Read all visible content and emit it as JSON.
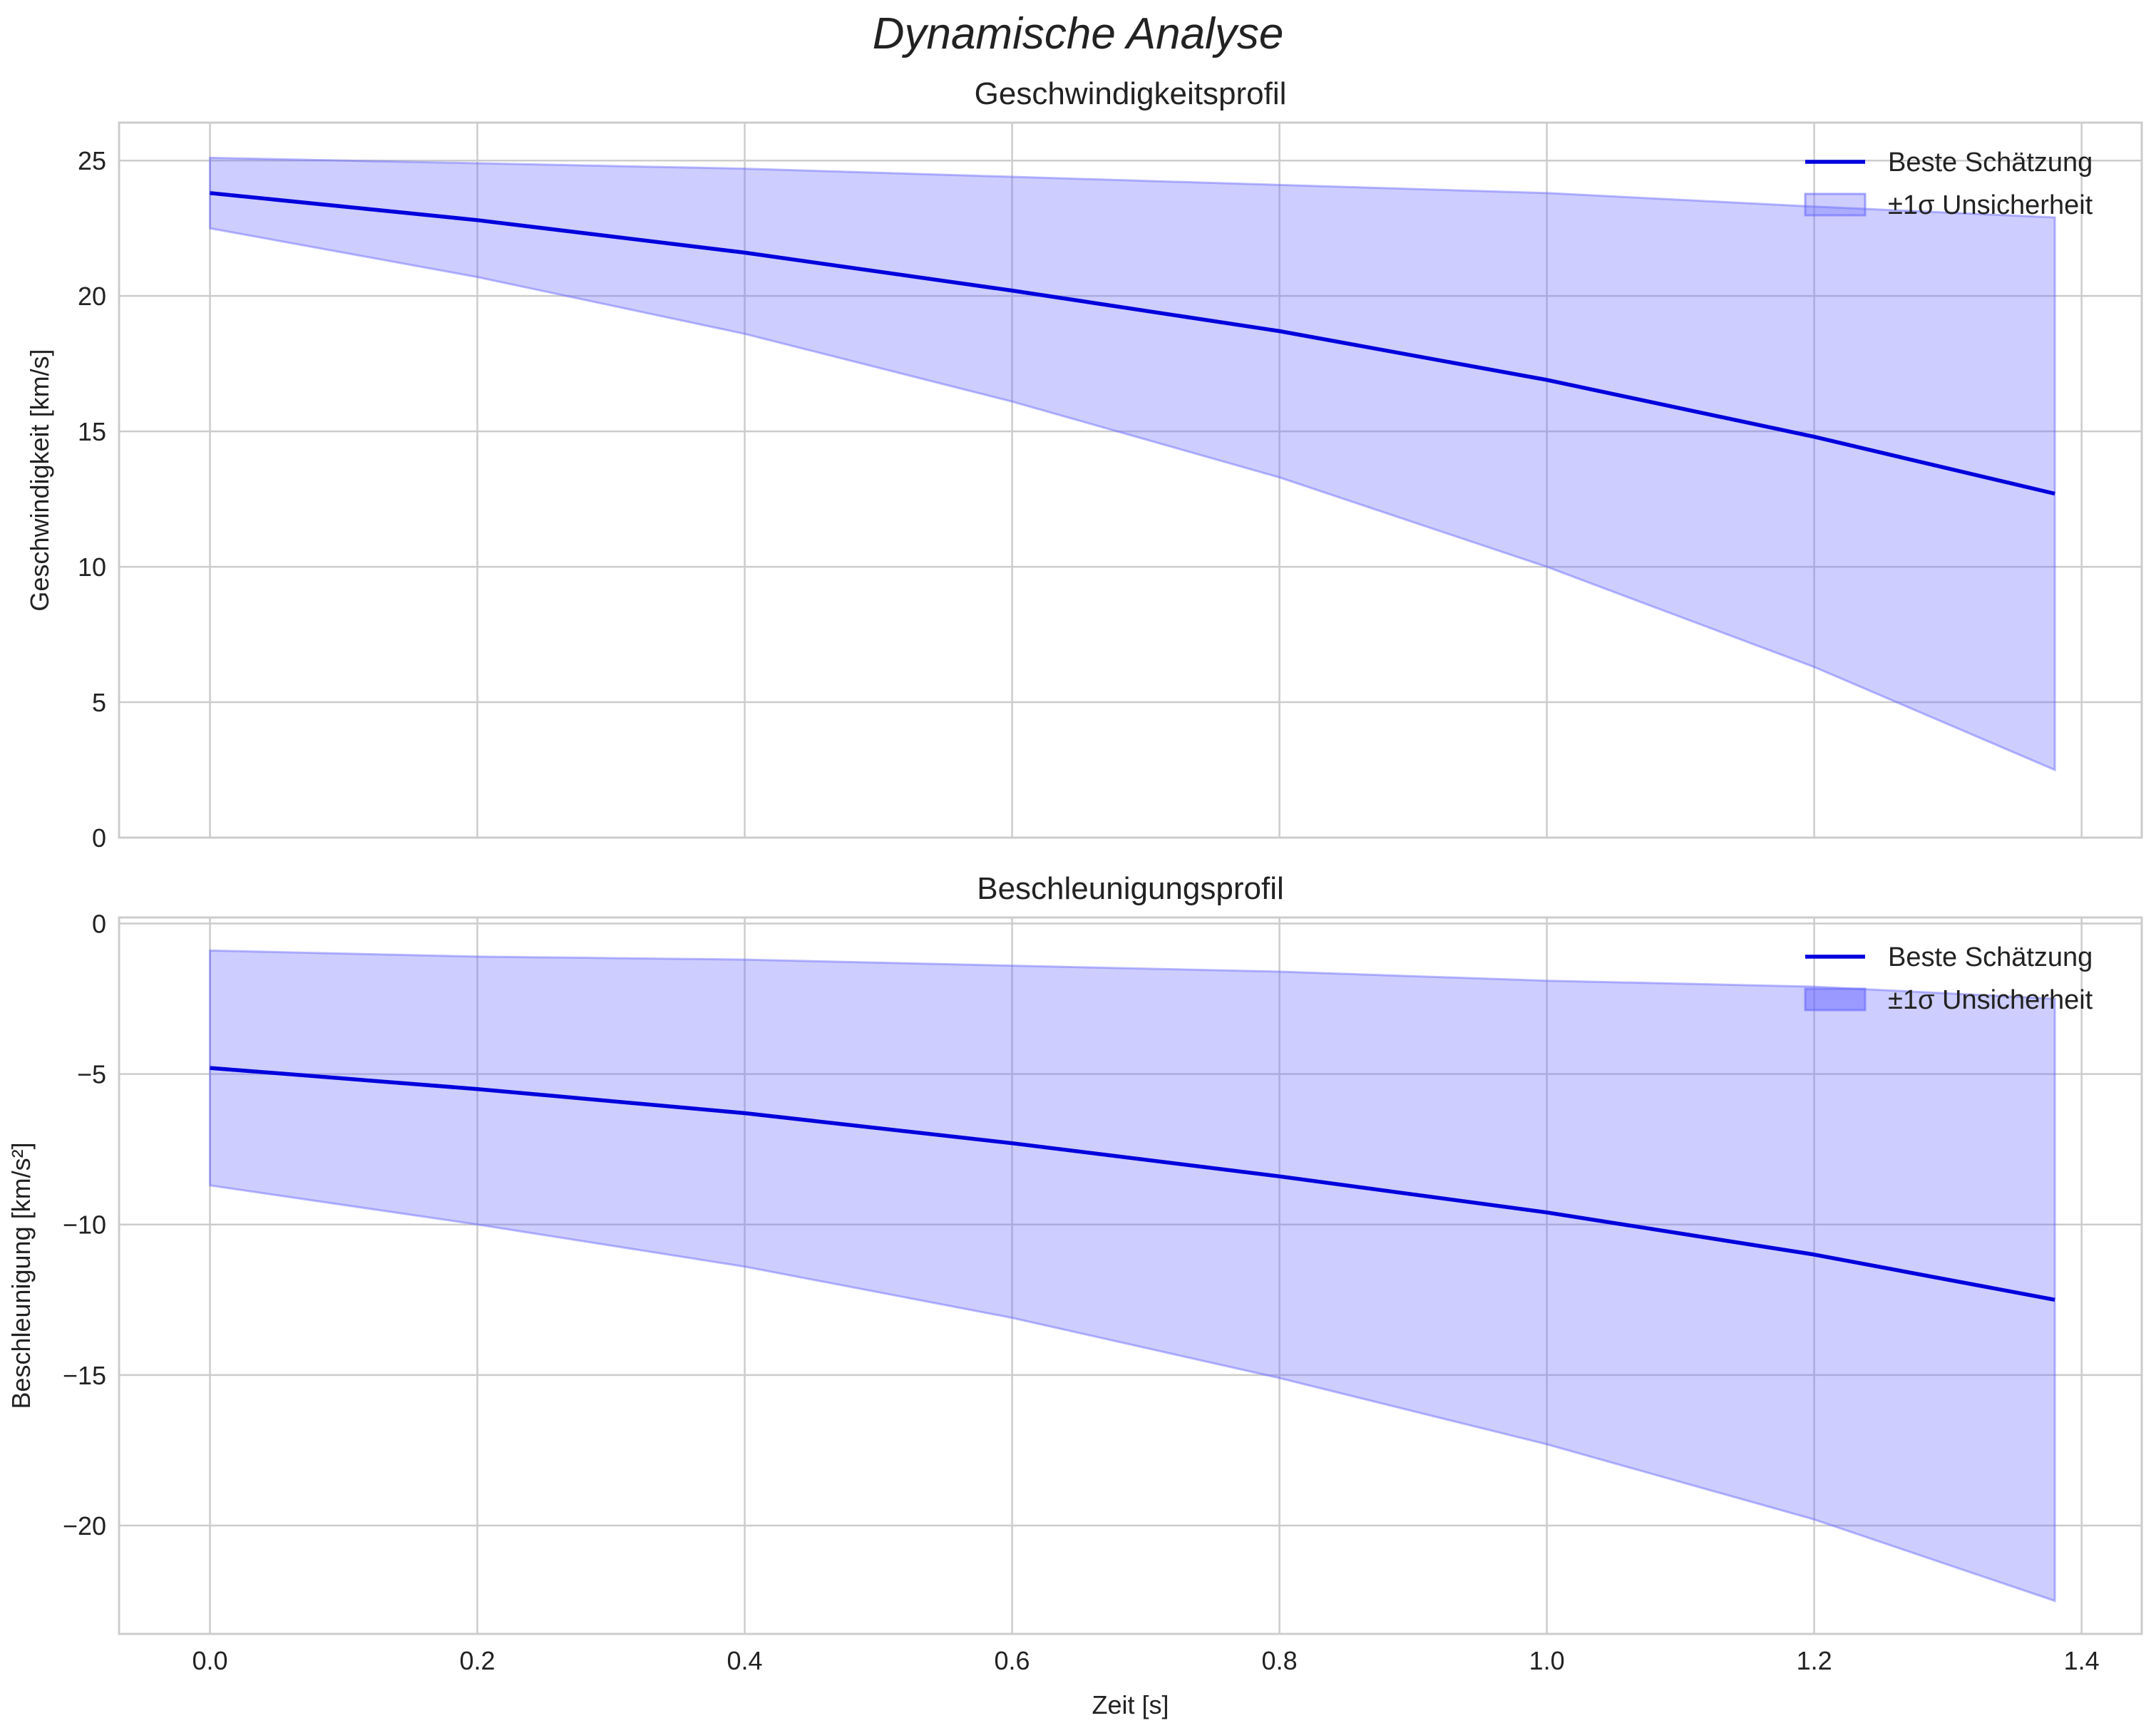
{
  "figure": {
    "title": "Dynamische Analyse"
  },
  "colors": {
    "line": "#0000dd",
    "band": "#6666ff",
    "grid": "#cccccc",
    "spine": "#cccccc",
    "text": "#222222"
  },
  "chart_data": [
    {
      "type": "line",
      "title": "Geschwindigkeitsprofil",
      "xlabel": "",
      "ylabel": "Geschwindigkeit [km/s]",
      "xlim": [
        -0.068,
        1.445
      ],
      "ylim": [
        0,
        26.4
      ],
      "xticks": [
        0.0,
        0.2,
        0.4,
        0.6,
        0.8,
        1.0,
        1.2,
        1.4
      ],
      "xtick_labels": [],
      "yticks": [
        0,
        5,
        10,
        15,
        20,
        25
      ],
      "ytick_labels": [
        "0",
        "5",
        "10",
        "15",
        "20",
        "25"
      ],
      "grid": true,
      "legend_position": "top-right",
      "legend": [
        "Beste Schätzung",
        "±1σ Unsicherheit"
      ],
      "x": [
        0.0,
        0.2,
        0.4,
        0.6,
        0.8,
        1.0,
        1.2,
        1.38
      ],
      "series": [
        {
          "name": "Beste Schätzung",
          "role": "line",
          "values": [
            23.8,
            22.8,
            21.6,
            20.2,
            18.7,
            16.9,
            14.8,
            12.7
          ]
        },
        {
          "name": "±1σ Unsicherheit (obere Grenze)",
          "role": "band_upper",
          "values": [
            25.1,
            24.9,
            24.7,
            24.4,
            24.1,
            23.8,
            23.3,
            22.9
          ]
        },
        {
          "name": "±1σ Unsicherheit (untere Grenze)",
          "role": "band_lower",
          "values": [
            22.5,
            20.7,
            18.6,
            16.1,
            13.3,
            10.0,
            6.3,
            2.5
          ]
        }
      ]
    },
    {
      "type": "line",
      "title": "Beschleunigungsprofil",
      "xlabel": "Zeit [s]",
      "ylabel": "Beschleunigung [km/s²]",
      "xlim": [
        -0.068,
        1.445
      ],
      "ylim": [
        -23.6,
        0.2
      ],
      "xticks": [
        0.0,
        0.2,
        0.4,
        0.6,
        0.8,
        1.0,
        1.2,
        1.4
      ],
      "xtick_labels": [
        "0.0",
        "0.2",
        "0.4",
        "0.6",
        "0.8",
        "1.0",
        "1.2",
        "1.4"
      ],
      "yticks": [
        0,
        -5,
        -10,
        -15,
        -20
      ],
      "ytick_labels": [
        "0",
        "−5",
        "−10",
        "−15",
        "−20"
      ],
      "grid": true,
      "legend_position": "top-right",
      "legend": [
        "Beste Schätzung",
        "±1σ Unsicherheit"
      ],
      "x": [
        0.0,
        0.2,
        0.4,
        0.6,
        0.8,
        1.0,
        1.2,
        1.38
      ],
      "series": [
        {
          "name": "Beste Schätzung",
          "role": "line",
          "values": [
            -4.8,
            -5.5,
            -6.3,
            -7.3,
            -8.4,
            -9.6,
            -11.0,
            -12.5
          ]
        },
        {
          "name": "±1σ Unsicherheit (obere Grenze)",
          "role": "band_upper",
          "values": [
            -0.9,
            -1.1,
            -1.2,
            -1.4,
            -1.6,
            -1.9,
            -2.1,
            -2.5
          ]
        },
        {
          "name": "±1σ Unsicherheit (untere Grenze)",
          "role": "band_lower",
          "values": [
            -8.7,
            -10.0,
            -11.4,
            -13.1,
            -15.1,
            -17.3,
            -19.8,
            -22.5
          ]
        }
      ]
    }
  ]
}
